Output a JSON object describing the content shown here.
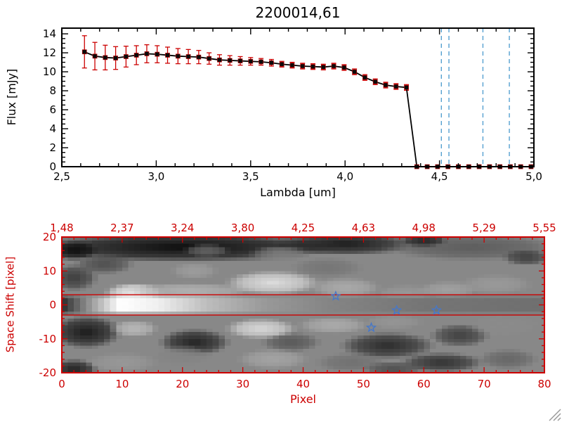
{
  "window": {
    "background": "#ffffff"
  },
  "chart_data": {
    "spectrum": {
      "type": "line",
      "title": "2200014,61",
      "xlabel": "Lambda [um]",
      "ylabel": "Flux [mJy]",
      "xlim": [
        2.5,
        5.0
      ],
      "ylim": [
        0,
        14.6
      ],
      "grid": false,
      "x_ticks": [
        {
          "v": 2.5,
          "t": "2,5"
        },
        {
          "v": 3.0,
          "t": "3,0"
        },
        {
          "v": 3.5,
          "t": "3,5"
        },
        {
          "v": 4.0,
          "t": "4,0"
        },
        {
          "v": 4.5,
          "t": "4,5"
        },
        {
          "v": 5.0,
          "t": "5,0"
        }
      ],
      "y_ticks": [
        {
          "v": 0,
          "t": "0"
        },
        {
          "v": 2,
          "t": "2"
        },
        {
          "v": 4,
          "t": "4"
        },
        {
          "v": 6,
          "t": "6"
        },
        {
          "v": 8,
          "t": "8"
        },
        {
          "v": 10,
          "t": "10"
        },
        {
          "v": 12,
          "t": "12"
        },
        {
          "v": 14,
          "t": "14"
        }
      ],
      "series": {
        "name": "flux-spectrum",
        "color": "#000000",
        "marker": "filled-square",
        "error_color": "#cc0000",
        "points": [
          {
            "x": 2.62,
            "y": 12.1,
            "e": 1.7
          },
          {
            "x": 2.675,
            "y": 11.65,
            "e": 1.45
          },
          {
            "x": 2.73,
            "y": 11.5,
            "e": 1.3
          },
          {
            "x": 2.785,
            "y": 11.45,
            "e": 1.2
          },
          {
            "x": 2.84,
            "y": 11.6,
            "e": 1.1
          },
          {
            "x": 2.895,
            "y": 11.75,
            "e": 1.0
          },
          {
            "x": 2.95,
            "y": 11.9,
            "e": 0.95
          },
          {
            "x": 3.005,
            "y": 11.85,
            "e": 0.9
          },
          {
            "x": 3.06,
            "y": 11.75,
            "e": 0.85
          },
          {
            "x": 3.115,
            "y": 11.65,
            "e": 0.8
          },
          {
            "x": 3.17,
            "y": 11.6,
            "e": 0.75
          },
          {
            "x": 3.225,
            "y": 11.55,
            "e": 0.7
          },
          {
            "x": 3.28,
            "y": 11.4,
            "e": 0.6
          },
          {
            "x": 3.335,
            "y": 11.25,
            "e": 0.55
          },
          {
            "x": 3.39,
            "y": 11.2,
            "e": 0.5
          },
          {
            "x": 3.445,
            "y": 11.15,
            "e": 0.45
          },
          {
            "x": 3.5,
            "y": 11.1,
            "e": 0.4
          },
          {
            "x": 3.555,
            "y": 11.05,
            "e": 0.35
          },
          {
            "x": 3.61,
            "y": 10.95,
            "e": 0.35
          },
          {
            "x": 3.665,
            "y": 10.8,
            "e": 0.3
          },
          {
            "x": 3.72,
            "y": 10.7,
            "e": 0.3
          },
          {
            "x": 3.775,
            "y": 10.6,
            "e": 0.3
          },
          {
            "x": 3.83,
            "y": 10.55,
            "e": 0.3
          },
          {
            "x": 3.885,
            "y": 10.5,
            "e": 0.3
          },
          {
            "x": 3.94,
            "y": 10.6,
            "e": 0.3
          },
          {
            "x": 3.995,
            "y": 10.45,
            "e": 0.3
          },
          {
            "x": 4.05,
            "y": 10.0,
            "e": 0.3
          },
          {
            "x": 4.105,
            "y": 9.4,
            "e": 0.3
          },
          {
            "x": 4.16,
            "y": 8.95,
            "e": 0.3
          },
          {
            "x": 4.215,
            "y": 8.6,
            "e": 0.3
          },
          {
            "x": 4.27,
            "y": 8.45,
            "e": 0.3
          },
          {
            "x": 4.325,
            "y": 8.35,
            "e": 0.3
          },
          {
            "x": 4.38,
            "y": 0,
            "e": 0.15
          },
          {
            "x": 4.435,
            "y": 0,
            "e": 0.15
          },
          {
            "x": 4.49,
            "y": 0,
            "e": 0.15
          },
          {
            "x": 4.545,
            "y": 0,
            "e": 0.15
          },
          {
            "x": 4.6,
            "y": 0,
            "e": 0.15
          },
          {
            "x": 4.655,
            "y": 0,
            "e": 0.15
          },
          {
            "x": 4.71,
            "y": 0,
            "e": 0.15
          },
          {
            "x": 4.765,
            "y": 0,
            "e": 0.15
          },
          {
            "x": 4.82,
            "y": 0,
            "e": 0.15
          },
          {
            "x": 4.875,
            "y": 0,
            "e": 0.15
          },
          {
            "x": 4.93,
            "y": 0,
            "e": 0.15
          },
          {
            "x": 4.985,
            "y": 0,
            "e": 0.15
          }
        ]
      },
      "vlines": {
        "color": "#55a0d0",
        "style": "dashed",
        "x": [
          4.51,
          4.55,
          4.73,
          4.87
        ]
      }
    },
    "spatial_image": {
      "type": "heatmap",
      "xlabel": "Pixel",
      "ylabel": "Space Shift [pixel]",
      "axis_color": "#cc0000",
      "xlim": [
        0,
        80
      ],
      "ylim": [
        -20,
        20
      ],
      "x_ticks": [
        {
          "v": 0,
          "t": "0"
        },
        {
          "v": 10,
          "t": "10"
        },
        {
          "v": 20,
          "t": "20"
        },
        {
          "v": 30,
          "t": "30"
        },
        {
          "v": 40,
          "t": "40"
        },
        {
          "v": 50,
          "t": "50"
        },
        {
          "v": 60,
          "t": "60"
        },
        {
          "v": 70,
          "t": "70"
        },
        {
          "v": 80,
          "t": "80"
        }
      ],
      "y_ticks": [
        {
          "v": 20,
          "t": "20"
        },
        {
          "v": 10,
          "t": "10"
        },
        {
          "v": 0,
          "t": "0"
        },
        {
          "v": -10,
          "t": "-10"
        },
        {
          "v": -20,
          "t": "-20"
        }
      ],
      "top_axis_labels": [
        {
          "p": 0,
          "t": "1,48"
        },
        {
          "p": 10,
          "t": "2,37"
        },
        {
          "p": 20,
          "t": "3,24"
        },
        {
          "p": 30,
          "t": "3,80"
        },
        {
          "p": 40,
          "t": "4,25"
        },
        {
          "p": 50,
          "t": "4,63"
        },
        {
          "p": 60,
          "t": "4,98"
        },
        {
          "p": 70,
          "t": "5,29"
        },
        {
          "p": 80,
          "t": "5,55"
        }
      ],
      "aperture_lines_y": [
        3,
        -3
      ],
      "stars": {
        "color": "#4477cc",
        "points": [
          [
            45.4,
            2.6
          ],
          [
            51.3,
            -6.7
          ],
          [
            55.5,
            -1.6
          ],
          [
            62.1,
            -1.6
          ]
        ]
      },
      "image": {
        "base": "#888888",
        "core_streak": {
          "half_height": 2.4,
          "stops": [
            [
              0.0,
              "#2a2a2a"
            ],
            [
              0.05,
              "#888888"
            ],
            [
              0.12,
              "#ffffff"
            ],
            [
              0.2,
              "#efefef"
            ],
            [
              0.3,
              "#bdbdbd"
            ],
            [
              0.42,
              "#999999"
            ],
            [
              0.55,
              "#858585"
            ],
            [
              0.75,
              "#757575"
            ],
            [
              1.0,
              "#6f6f6f"
            ]
          ]
        },
        "blobs": [
          [
            20,
            17,
            26,
            4.5,
            "#050505"
          ],
          [
            47,
            18,
            12,
            3.5,
            "#151515"
          ],
          [
            2,
            16,
            4,
            3,
            "#0a0a0a"
          ],
          [
            24,
            16,
            4,
            2,
            "#6a6a6a"
          ],
          [
            36,
            15,
            5,
            2.5,
            "#808080"
          ],
          [
            68,
            17,
            15,
            4,
            "#5a5a5a"
          ],
          [
            60,
            19,
            4,
            2,
            "#1e1e1e"
          ],
          [
            77,
            14,
            4,
            2.5,
            "#3a3a3a"
          ],
          [
            2,
            8,
            4,
            4,
            "#383838"
          ],
          [
            7,
            12,
            5,
            3,
            "#4a4a4a"
          ],
          [
            12,
            3.5,
            5,
            3,
            "#f5f5f5"
          ],
          [
            21,
            4,
            11,
            2.6,
            "#b5b5b5"
          ],
          [
            35,
            6.5,
            8,
            3.6,
            "#e2e2e2"
          ],
          [
            22,
            10,
            4,
            2.5,
            "#9e9e9e"
          ],
          [
            47,
            5,
            6,
            3,
            "#adadad"
          ],
          [
            57,
            3.5,
            5,
            2.5,
            "#989898"
          ],
          [
            64,
            4.5,
            5,
            2.5,
            "#a3a3a3"
          ],
          [
            72,
            6,
            6,
            3,
            "#9b9b9b"
          ],
          [
            44,
            11,
            6,
            3,
            "#747474"
          ],
          [
            4,
            -8,
            6,
            5,
            "#141414"
          ],
          [
            22,
            -11,
            6,
            4,
            "#1c1c1c"
          ],
          [
            54,
            -12,
            8,
            4,
            "#262626"
          ],
          [
            66,
            -9,
            5,
            3.5,
            "#3c3c3c"
          ],
          [
            38,
            -11,
            5,
            3,
            "#555555"
          ],
          [
            12,
            -7,
            4,
            2.6,
            "#bdbdbd"
          ],
          [
            33,
            -7,
            6,
            3,
            "#dedede"
          ],
          [
            45,
            -6,
            6,
            2.6,
            "#aeaeae"
          ],
          [
            55,
            -5,
            5,
            2.2,
            "#969696"
          ],
          [
            73,
            -6,
            6,
            3.5,
            "#8b8b8b"
          ],
          [
            10,
            -17,
            6,
            3,
            "#999999"
          ],
          [
            20,
            -15,
            5,
            3,
            "#838383"
          ],
          [
            35,
            -16,
            6,
            3,
            "#a6a6a6"
          ],
          [
            48,
            -17,
            6,
            3,
            "#6f6f6f"
          ],
          [
            63,
            -17,
            7,
            3,
            "#2c2c2c"
          ],
          [
            74,
            -16,
            5,
            3,
            "#646464"
          ],
          [
            2,
            -19,
            4,
            3,
            "#1a1a1a"
          ],
          [
            55,
            -19,
            5,
            2.5,
            "#4a4a4a"
          ]
        ]
      }
    }
  },
  "decorations": {
    "resize_grip_color": "#999999"
  }
}
